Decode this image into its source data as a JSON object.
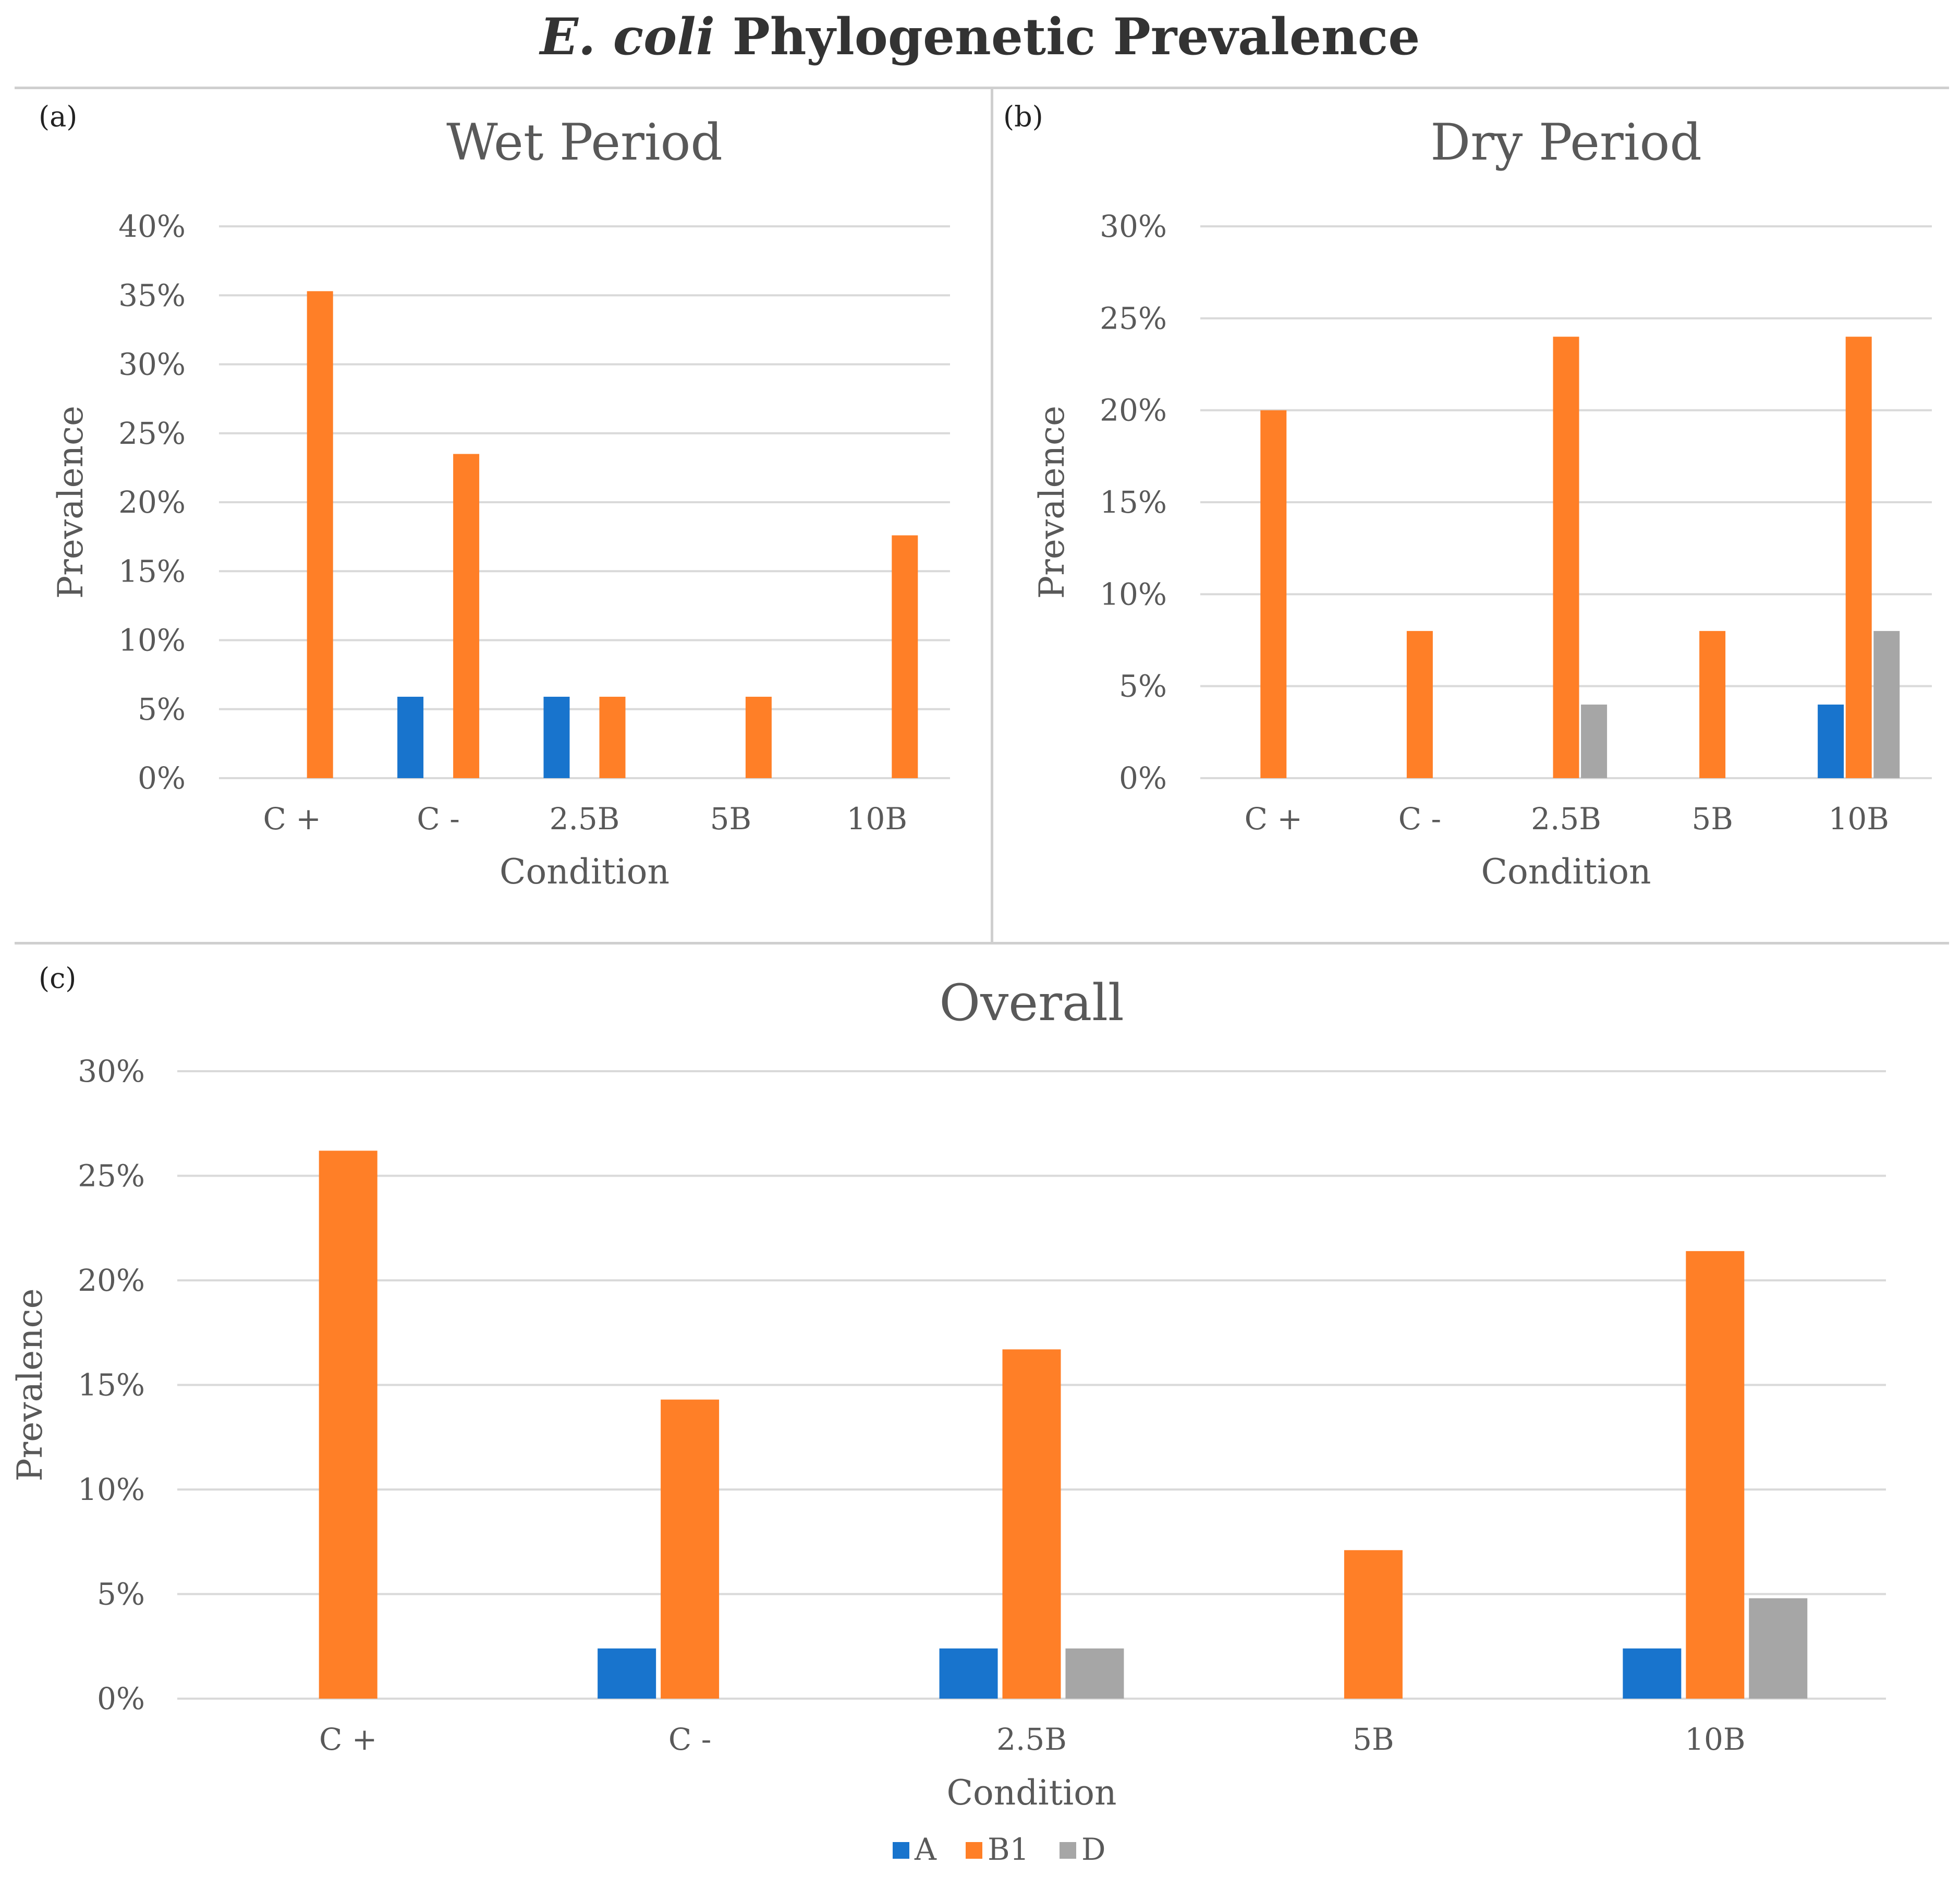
{
  "figure": {
    "title_italic": "E. coli",
    "title_rest": "Phylogenetic Prevalence"
  },
  "colors": {
    "A": "#1874cd",
    "B1": "#ff7f27",
    "D": "#a6a6a6",
    "grid": "#d9d9d9",
    "text": "#595959"
  },
  "legend": {
    "items": [
      {
        "label": "A",
        "color": "#1874cd"
      },
      {
        "label": "B1",
        "color": "#ff7f27"
      },
      {
        "label": "D",
        "color": "#a6a6a6"
      }
    ]
  },
  "chart_data": [
    {
      "id": "a",
      "panel_label": "(a)",
      "type": "bar",
      "title": "Wet Period",
      "xlabel": "Condition",
      "ylabel": "Prevalence",
      "categories": [
        "C +",
        "C -",
        "2.5B",
        "5B",
        "10B"
      ],
      "ylim": [
        0,
        40
      ],
      "yticks": [
        "0%",
        "5%",
        "10%",
        "15%",
        "20%",
        "25%",
        "30%",
        "35%",
        "40%"
      ],
      "ytick_values": [
        0,
        5,
        10,
        15,
        20,
        25,
        30,
        35,
        40
      ],
      "series": [
        {
          "name": "A",
          "values": [
            0,
            5.9,
            5.9,
            0,
            0
          ]
        },
        {
          "name": "B1",
          "values": [
            35.3,
            23.5,
            5.9,
            5.9,
            17.6
          ]
        }
      ]
    },
    {
      "id": "b",
      "panel_label": "(b)",
      "type": "bar",
      "title": "Dry Period",
      "xlabel": "Condition",
      "ylabel": "Prevalence",
      "categories": [
        "C +",
        "C -",
        "2.5B",
        "5B",
        "10B"
      ],
      "ylim": [
        0,
        30
      ],
      "yticks": [
        "0%",
        "5%",
        "10%",
        "15%",
        "20%",
        "25%",
        "30%"
      ],
      "ytick_values": [
        0,
        5,
        10,
        15,
        20,
        25,
        30
      ],
      "series": [
        {
          "name": "A",
          "values": [
            0,
            0,
            0,
            0,
            4
          ]
        },
        {
          "name": "B1",
          "values": [
            20,
            8,
            24,
            8,
            24
          ]
        },
        {
          "name": "D",
          "values": [
            0,
            0,
            4,
            0,
            8
          ]
        }
      ]
    },
    {
      "id": "c",
      "panel_label": "(c)",
      "type": "bar",
      "title": "Overall",
      "xlabel": "Condition",
      "ylabel": "Prevalence",
      "categories": [
        "C +",
        "C -",
        "2.5B",
        "5B",
        "10B"
      ],
      "ylim": [
        0,
        30
      ],
      "yticks": [
        "0%",
        "5%",
        "10%",
        "15%",
        "20%",
        "25%",
        "30%"
      ],
      "ytick_values": [
        0,
        5,
        10,
        15,
        20,
        25,
        30
      ],
      "series": [
        {
          "name": "A",
          "values": [
            0,
            2.4,
            2.4,
            0,
            2.4
          ]
        },
        {
          "name": "B1",
          "values": [
            26.2,
            14.3,
            16.7,
            7.1,
            21.4
          ]
        },
        {
          "name": "D",
          "values": [
            0,
            0,
            2.4,
            0,
            4.8
          ]
        }
      ]
    }
  ]
}
